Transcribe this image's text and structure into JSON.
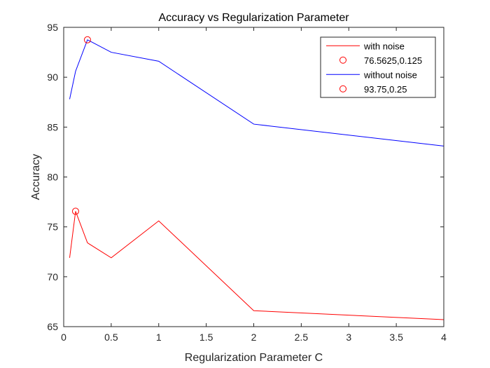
{
  "chart_data": {
    "type": "line",
    "title": "Accuracy vs Regularization Parameter",
    "xlabel": "Regularization Parameter C",
    "ylabel": "Accuracy",
    "xlim": [
      0,
      4
    ],
    "ylim": [
      65,
      95
    ],
    "xticks": [
      0,
      0.5,
      1,
      1.5,
      2,
      2.5,
      3,
      3.5,
      4
    ],
    "xtick_labels": [
      "0",
      "0.5",
      "1",
      "1.5",
      "2",
      "2.5",
      "3",
      "3.5",
      "4"
    ],
    "yticks": [
      65,
      70,
      75,
      80,
      85,
      90,
      95
    ],
    "ytick_labels": [
      "65",
      "70",
      "75",
      "80",
      "85",
      "90",
      "95"
    ],
    "grid": false,
    "legend_position": "top-right",
    "series": [
      {
        "name": "with noise",
        "color": "#ff0000",
        "style": "line",
        "x": [
          0.0625,
          0.125,
          0.25,
          0.5,
          1,
          2,
          4
        ],
        "y": [
          71.9,
          76.5625,
          73.4,
          71.9,
          75.6,
          66.6,
          65.7
        ]
      },
      {
        "name": "76.5625,0.125",
        "color": "#ff0000",
        "style": "marker",
        "x": [
          0.125
        ],
        "y": [
          76.5625
        ]
      },
      {
        "name": "without noise",
        "color": "#0000ff",
        "style": "line",
        "x": [
          0.0625,
          0.125,
          0.25,
          0.5,
          1,
          2,
          4
        ],
        "y": [
          87.8,
          90.6,
          93.75,
          92.5,
          91.6,
          85.3,
          83.1
        ]
      },
      {
        "name": "93.75,0.25",
        "color": "#ff0000",
        "style": "marker",
        "x": [
          0.25
        ],
        "y": [
          93.75
        ]
      }
    ]
  }
}
